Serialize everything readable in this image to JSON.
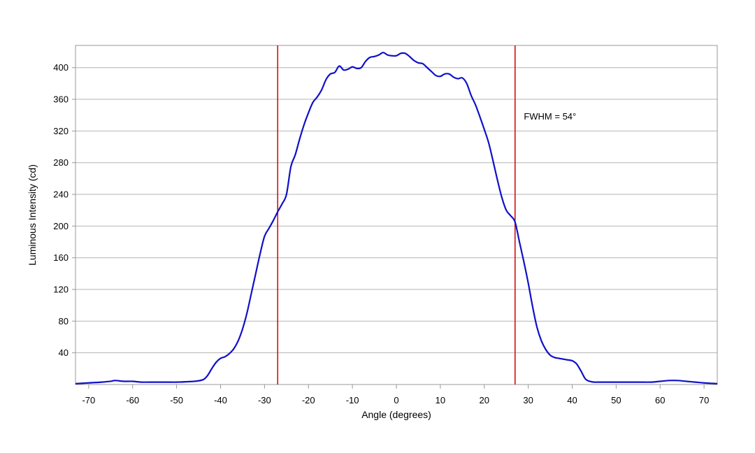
{
  "chart_data": {
    "type": "line",
    "title": "",
    "xlabel": "Angle (degrees)",
    "ylabel": "Luminous Intensity (cd)",
    "xlim": [
      -73,
      73
    ],
    "ylim": [
      0,
      428
    ],
    "x_ticks": [
      -70,
      -60,
      -50,
      -40,
      -30,
      -20,
      -10,
      0,
      10,
      20,
      30,
      40,
      50,
      60,
      70
    ],
    "y_ticks": [
      40,
      80,
      120,
      160,
      200,
      240,
      280,
      320,
      360,
      400
    ],
    "x_tick_labels": [
      "-70",
      "-60",
      "-50",
      "-40",
      "-30",
      "-20",
      "-10",
      "0",
      "10",
      "20",
      "30",
      "40",
      "50",
      "60",
      "70"
    ],
    "y_tick_labels": [
      "40",
      "80",
      "120",
      "160",
      "200",
      "240",
      "280",
      "320",
      "360",
      "400"
    ],
    "grid": "horizontal",
    "series": [
      {
        "color": "#1010c8",
        "x": [
          -73,
          -70,
          -67,
          -65,
          -64,
          -62,
          -60,
          -58,
          -55,
          -52,
          -50,
          -46,
          -44,
          -43,
          -42,
          -41,
          -40,
          -39,
          -38,
          -37,
          -36,
          -35,
          -34,
          -33,
          -32,
          -31,
          -30,
          -29,
          -28,
          -27,
          -26,
          -25,
          -24,
          -23,
          -22,
          -21,
          -20,
          -19,
          -18,
          -17,
          -16,
          -15,
          -14,
          -13,
          -12,
          -11,
          -10,
          -9,
          -8,
          -7,
          -6,
          -5,
          -4,
          -3,
          -2,
          -1,
          0,
          1,
          2,
          3,
          4,
          5,
          6,
          7,
          8,
          9,
          10,
          11,
          12,
          13,
          14,
          15,
          16,
          17,
          18,
          19,
          20,
          21,
          22,
          23,
          24,
          25,
          26,
          27,
          28,
          29,
          30,
          31,
          32,
          33,
          34,
          35,
          36,
          37,
          38,
          39,
          40,
          41,
          42,
          43,
          44,
          45,
          46,
          48,
          50,
          55,
          58,
          60,
          62,
          64,
          66,
          68,
          70,
          73
        ],
        "y": [
          1,
          2,
          3,
          4,
          5,
          4,
          4,
          3,
          3,
          3,
          3,
          4,
          6,
          11,
          20,
          28,
          33,
          35,
          39,
          45,
          55,
          70,
          90,
          115,
          140,
          165,
          187,
          197,
          207,
          218,
          228,
          240,
          275,
          290,
          310,
          328,
          343,
          356,
          363,
          372,
          385,
          392,
          394,
          402,
          397,
          398,
          401,
          399,
          400,
          408,
          413,
          414,
          416,
          419,
          416,
          415,
          415,
          418,
          418,
          414,
          409,
          406,
          405,
          400,
          395,
          390,
          389,
          392,
          392,
          388,
          386,
          387,
          380,
          365,
          353,
          338,
          322,
          305,
          282,
          258,
          236,
          220,
          213,
          205,
          180,
          155,
          128,
          98,
          72,
          55,
          44,
          37,
          34,
          33,
          32,
          31,
          30,
          26,
          17,
          7,
          4,
          3,
          3,
          3,
          3,
          3,
          3,
          4,
          5,
          5,
          4,
          3,
          2,
          1
        ]
      }
    ],
    "vertical_lines": [
      {
        "x": -27,
        "color": "#d01010"
      },
      {
        "x": 27,
        "color": "#d01010"
      }
    ],
    "annotation": {
      "text": "FWHM = 54°",
      "x": 29,
      "y": 338
    }
  }
}
